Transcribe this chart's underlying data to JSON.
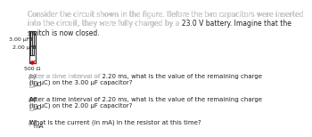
{
  "title_text": "Consider the circuit shown in the figure. Before the two capacitors were inserted\ninto the circuit, they were fully charged by a 23.0 V battery. Imagine that the\nswitch is now closed.",
  "highlight_voltage": "23.0",
  "cap1_label": "3.00 μF",
  "cap2_label": "2.00 μF",
  "resistor_label": "500 Ω",
  "qa_label": "(a)",
  "qb_label": "(b)",
  "qc_label": "(c)",
  "qa_text": "After a time interval of 2.20 ms, what is the value of the remaining charge\n(in μC) on the 3.00 μF capacitor?",
  "qb_text": "After a time interval of 2.20 ms, what is the value of the remaining charge\n(in μC) on the 2.00 μF capacitor?",
  "qc_text": "What is the current (in mA) in the resistor at this time?",
  "unit_a": "μC",
  "unit_b": "μC",
  "unit_c": "mA",
  "highlight_color": "#cc0000",
  "text_color": "#222222",
  "bg_color": "#ffffff",
  "circuit_color": "#333333",
  "circuit_red": "#cc0000",
  "box_color": "#cccccc",
  "title_fontsize": 5.5,
  "body_fontsize": 5.0,
  "small_fontsize": 4.5
}
